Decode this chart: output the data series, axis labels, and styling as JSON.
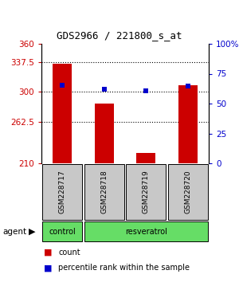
{
  "title": "GDS2966 / 221800_s_at",
  "samples": [
    "GSM228717",
    "GSM228718",
    "GSM228719",
    "GSM228720"
  ],
  "bar_values": [
    335,
    285,
    223,
    308
  ],
  "bar_bottom": 210,
  "bar_color": "#cc0000",
  "dot_values": [
    308,
    303,
    301,
    307
  ],
  "dot_color": "#0000cc",
  "ylim_left": [
    210,
    360
  ],
  "ylim_right": [
    0,
    100
  ],
  "yticks_left": [
    210,
    262.5,
    300,
    337.5,
    360
  ],
  "ytick_labels_left": [
    "210",
    "262.5",
    "300",
    "337.5",
    "360"
  ],
  "yticks_right": [
    0,
    25,
    50,
    75,
    100
  ],
  "ytick_labels_right": [
    "0",
    "25",
    "50",
    "75",
    "100%"
  ],
  "grid_values": [
    262.5,
    300,
    337.5
  ],
  "agent_labels": [
    "control",
    "resveratrol"
  ],
  "agent_color": "#66dd66",
  "sample_box_color": "#c8c8c8",
  "legend_count_color": "#cc0000",
  "legend_dot_color": "#0000cc",
  "legend_count_label": "count",
  "legend_dot_label": "percentile rank within the sample",
  "left_label_color": "#cc0000",
  "right_label_color": "#0000cc",
  "fig_width": 3.0,
  "fig_height": 3.54,
  "dpi": 100
}
